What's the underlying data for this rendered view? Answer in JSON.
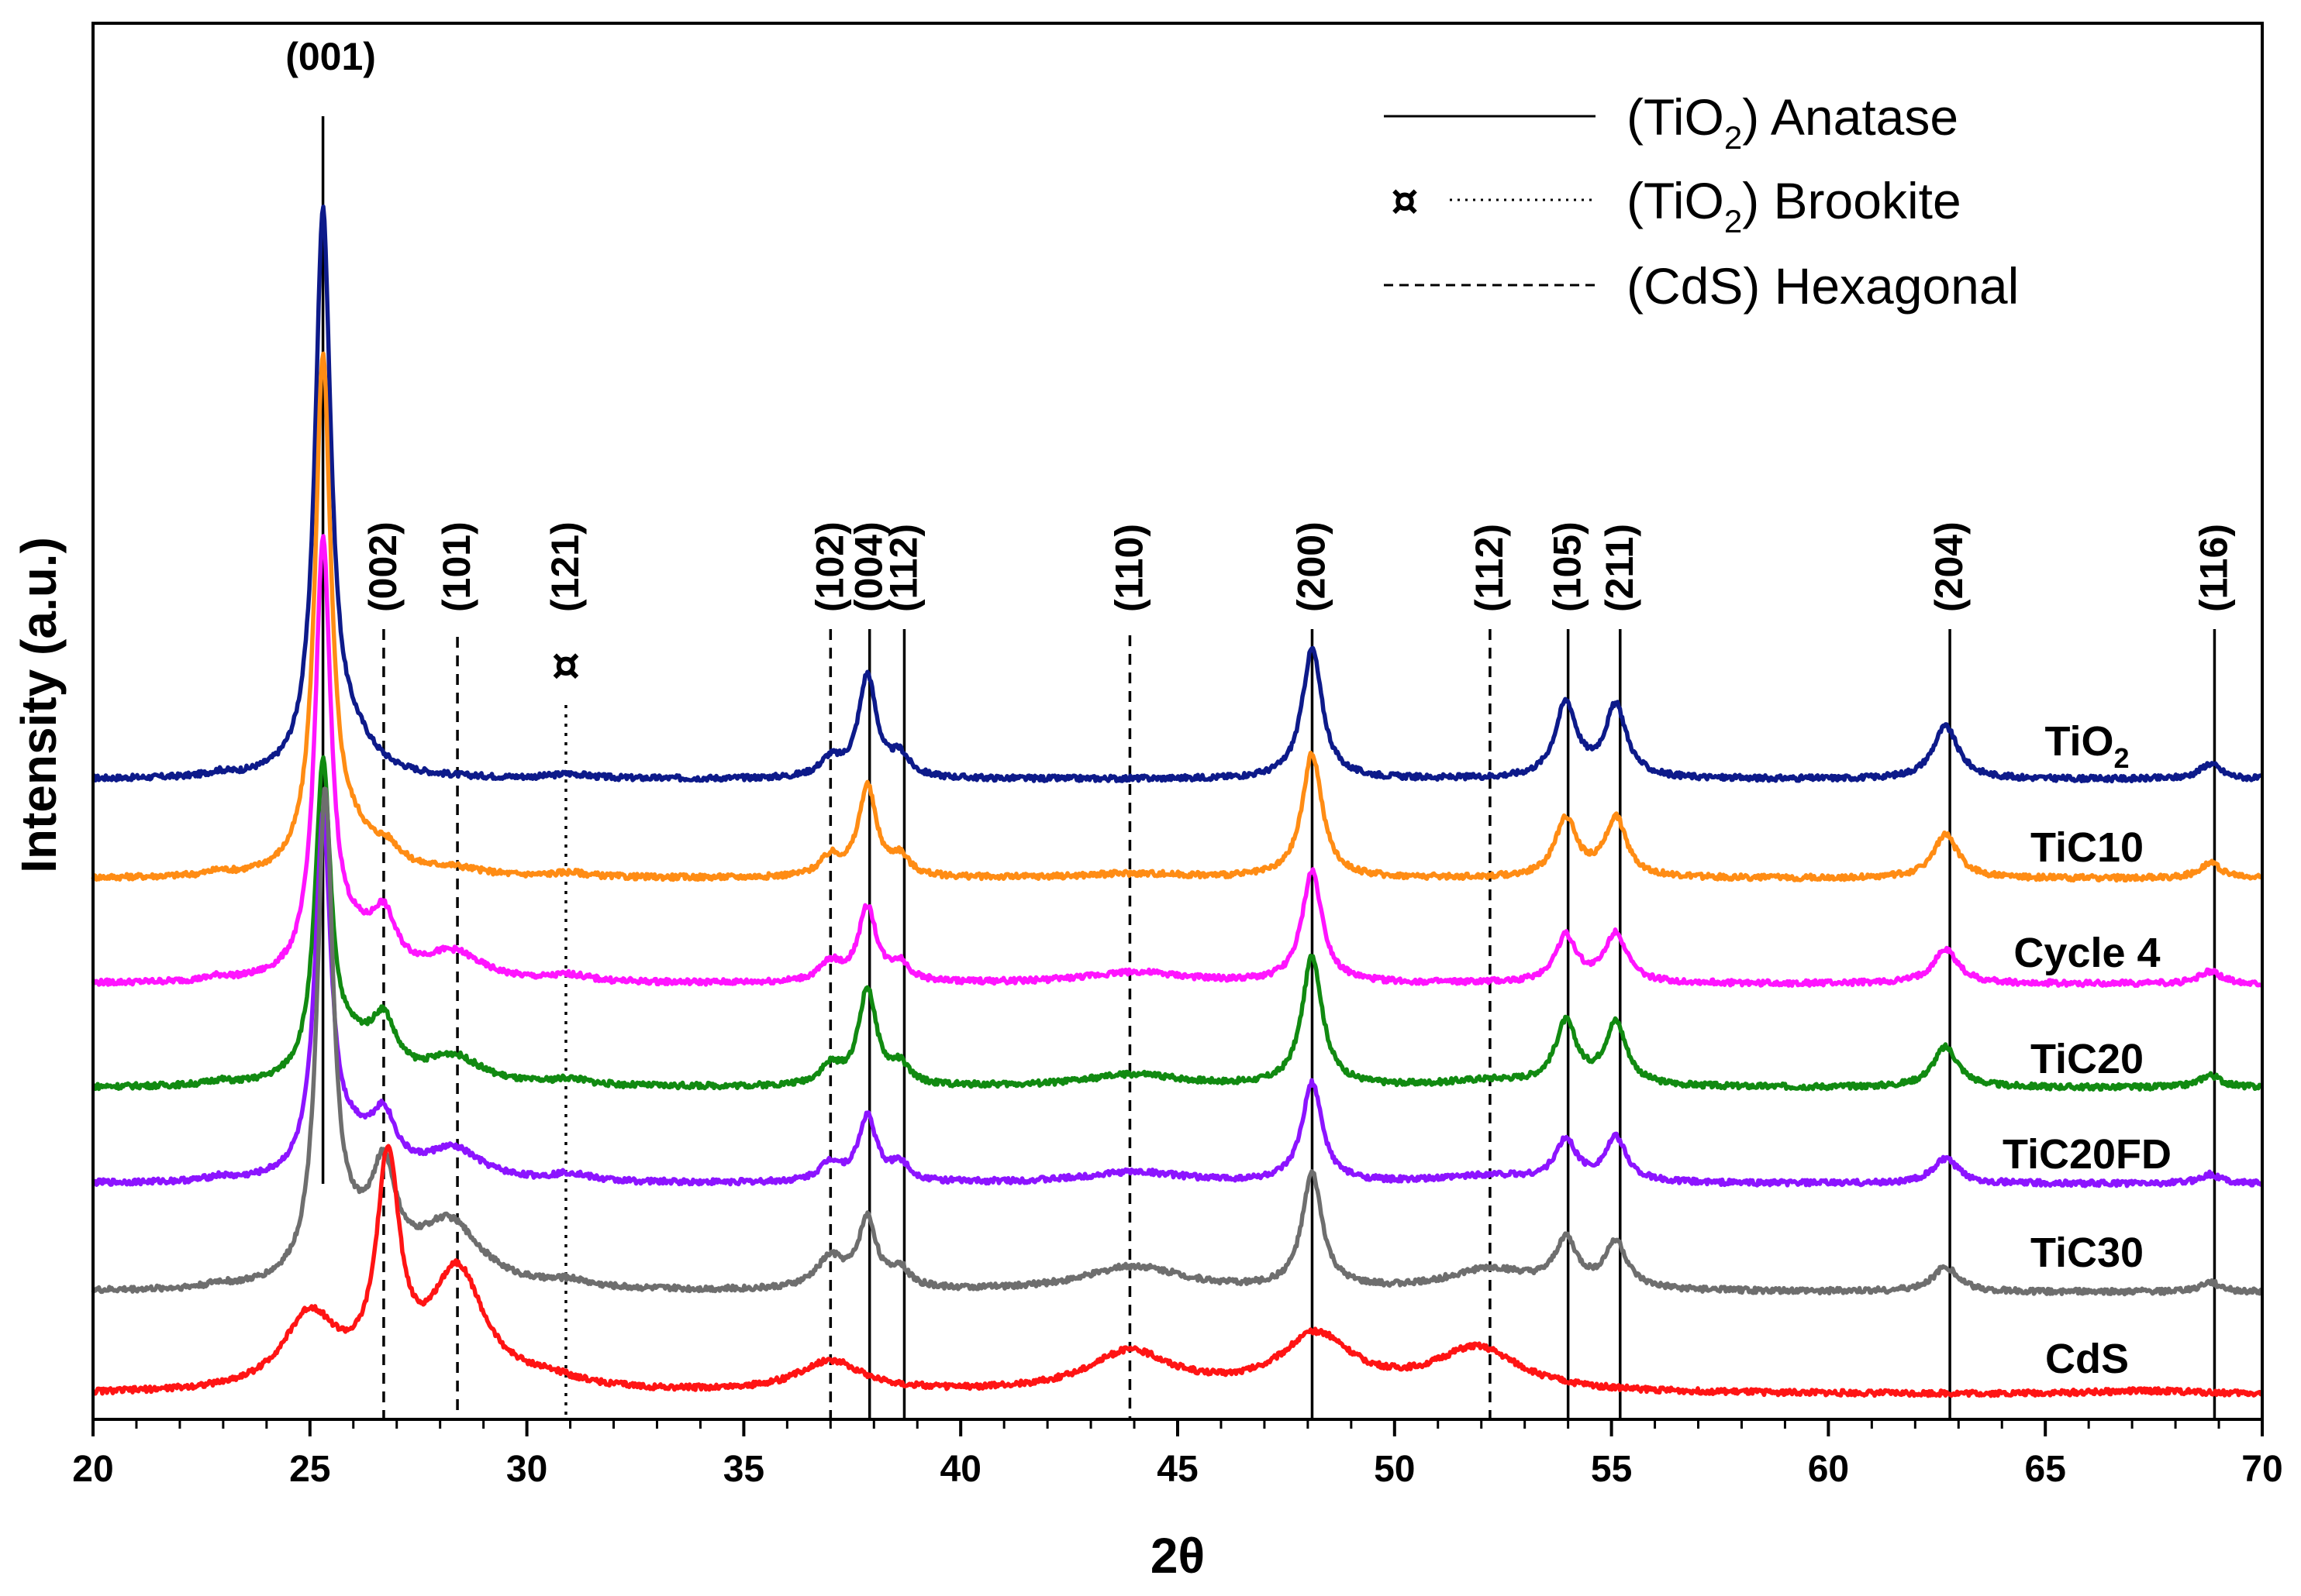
{
  "chart_data": {
    "type": "line",
    "title": "",
    "xlabel": "2θ",
    "ylabel": "Intensity (a.u.)",
    "xlim": [
      20,
      70
    ],
    "xticks": [
      "20",
      "25",
      "30",
      "35",
      "40",
      "45",
      "50",
      "55",
      "60",
      "65",
      "70"
    ],
    "yticks": [],
    "legend": {
      "position": "top-right",
      "entries": [
        {
          "prefix": "(TiO",
          "sub": "2",
          "suffix": ") Anatase",
          "style": "solid",
          "marker": ""
        },
        {
          "prefix": "(TiO",
          "sub": "2",
          "suffix": ") Brookite",
          "style": "dotted",
          "marker": "¤"
        },
        {
          "prefix": "(CdS) Hexagonal",
          "sub": "",
          "suffix": "",
          "style": "dashed",
          "marker": ""
        }
      ]
    },
    "reference_lines": [
      {
        "x": 25.3,
        "hkl": "(001)",
        "phase": "anatase"
      },
      {
        "x": 26.7,
        "hkl": "(002)",
        "phase": "cds"
      },
      {
        "x": 28.4,
        "hkl": "(101)",
        "phase": "cds"
      },
      {
        "x": 30.9,
        "hkl": "(121)",
        "phase": "brookite"
      },
      {
        "x": 37.0,
        "hkl": "(102)",
        "phase": "cds"
      },
      {
        "x": 37.9,
        "hkl": "(004)",
        "phase": "anatase"
      },
      {
        "x": 38.7,
        "hkl": "(112)",
        "phase": "anatase"
      },
      {
        "x": 43.9,
        "hkl": "(110)",
        "phase": "cds"
      },
      {
        "x": 48.1,
        "hkl": "(200)",
        "phase": "anatase"
      },
      {
        "x": 52.2,
        "hkl": "(112)",
        "phase": "cds"
      },
      {
        "x": 54.0,
        "hkl": "(105)",
        "phase": "anatase"
      },
      {
        "x": 55.2,
        "hkl": "(211)",
        "phase": "anatase"
      },
      {
        "x": 62.8,
        "hkl": "(204)",
        "phase": "anatase"
      },
      {
        "x": 68.9,
        "hkl": "(116)",
        "phase": "anatase"
      }
    ],
    "brookite_marker": {
      "x": 30.9,
      "symbol": "¤"
    },
    "series": [
      {
        "name": "TiO2",
        "label_main": "TiO",
        "label_sub": "2",
        "color": "#0d1a8a",
        "baseline": 0.0,
        "peaks": [
          [
            22.9,
            0.06,
            0.3
          ],
          [
            25.3,
            9.0,
            0.22
          ],
          [
            26.0,
            0.5,
            0.6
          ],
          [
            31.0,
            0.07,
            0.5
          ],
          [
            37.0,
            0.28,
            0.3
          ],
          [
            37.85,
            1.65,
            0.25
          ],
          [
            38.6,
            0.33,
            0.25
          ],
          [
            48.1,
            2.1,
            0.28
          ],
          [
            53.95,
            1.2,
            0.3
          ],
          [
            55.1,
            1.15,
            0.3
          ],
          [
            62.7,
            0.85,
            0.35
          ],
          [
            68.8,
            0.25,
            0.3
          ]
        ]
      },
      {
        "name": "TiC10",
        "label_main": "TiC10",
        "label_sub": "",
        "color": "#ff8c14",
        "baseline": 0.0,
        "peaks": [
          [
            22.9,
            0.06,
            0.3
          ],
          [
            25.3,
            8.2,
            0.22
          ],
          [
            26.0,
            0.5,
            0.6
          ],
          [
            26.8,
            0.3,
            0.4
          ],
          [
            28.3,
            0.12,
            0.8
          ],
          [
            31.0,
            0.07,
            0.5
          ],
          [
            37.0,
            0.3,
            0.3
          ],
          [
            37.85,
            1.45,
            0.25
          ],
          [
            38.6,
            0.3,
            0.25
          ],
          [
            44.0,
            0.07,
            1.4
          ],
          [
            48.1,
            2.0,
            0.28
          ],
          [
            53.95,
            0.95,
            0.3
          ],
          [
            55.1,
            0.95,
            0.3
          ],
          [
            62.7,
            0.7,
            0.35
          ],
          [
            68.8,
            0.25,
            0.3
          ]
        ]
      },
      {
        "name": "Cycle 4",
        "label_main": "Cycle 4",
        "label_sub": "",
        "color": "#ff14ff",
        "baseline": 0.0,
        "peaks": [
          [
            22.9,
            0.06,
            0.3
          ],
          [
            25.3,
            6.9,
            0.22
          ],
          [
            26.0,
            0.5,
            0.6
          ],
          [
            26.7,
            0.85,
            0.35
          ],
          [
            28.3,
            0.45,
            0.8
          ],
          [
            31.0,
            0.1,
            0.5
          ],
          [
            37.0,
            0.3,
            0.3
          ],
          [
            37.85,
            1.2,
            0.25
          ],
          [
            38.6,
            0.28,
            0.25
          ],
          [
            44.0,
            0.18,
            1.4
          ],
          [
            48.1,
            1.8,
            0.28
          ],
          [
            53.95,
            0.75,
            0.3
          ],
          [
            55.1,
            0.8,
            0.3
          ],
          [
            62.7,
            0.55,
            0.35
          ],
          [
            68.8,
            0.2,
            0.3
          ]
        ]
      },
      {
        "name": "TiC20",
        "label_main": "TiC20",
        "label_sub": "",
        "color": "#118a11",
        "baseline": 0.0,
        "peaks": [
          [
            22.9,
            0.06,
            0.3
          ],
          [
            25.3,
            5.0,
            0.22
          ],
          [
            26.0,
            0.5,
            0.6
          ],
          [
            26.7,
            0.85,
            0.35
          ],
          [
            28.3,
            0.45,
            0.8
          ],
          [
            31.0,
            0.1,
            0.5
          ],
          [
            37.0,
            0.3,
            0.3
          ],
          [
            37.85,
            1.55,
            0.25
          ],
          [
            38.6,
            0.3,
            0.25
          ],
          [
            44.0,
            0.2,
            1.4
          ],
          [
            48.1,
            2.1,
            0.28
          ],
          [
            52.2,
            0.1,
            1.2
          ],
          [
            53.95,
            1.0,
            0.3
          ],
          [
            55.1,
            1.0,
            0.3
          ],
          [
            62.7,
            0.65,
            0.35
          ],
          [
            68.8,
            0.2,
            0.3
          ]
        ]
      },
      {
        "name": "TiC20FD",
        "label_main": "TiC20FD",
        "label_sub": "",
        "color": "#8c14ff",
        "baseline": 0.0,
        "peaks": [
          [
            22.9,
            0.06,
            0.3
          ],
          [
            25.3,
            5.7,
            0.22
          ],
          [
            26.0,
            0.5,
            0.6
          ],
          [
            26.7,
            0.85,
            0.35
          ],
          [
            28.3,
            0.5,
            0.8
          ],
          [
            31.0,
            0.12,
            0.5
          ],
          [
            37.0,
            0.3,
            0.3
          ],
          [
            37.85,
            1.05,
            0.25
          ],
          [
            38.6,
            0.28,
            0.25
          ],
          [
            44.0,
            0.18,
            1.4
          ],
          [
            48.1,
            1.6,
            0.28
          ],
          [
            52.2,
            0.12,
            1.2
          ],
          [
            53.95,
            0.65,
            0.3
          ],
          [
            55.1,
            0.7,
            0.3
          ],
          [
            62.7,
            0.4,
            0.35
          ],
          [
            68.8,
            0.15,
            0.3
          ]
        ]
      },
      {
        "name": "TiC30",
        "label_main": "TiC30",
        "label_sub": "",
        "color": "#6e6e6e",
        "baseline": 0.0,
        "peaks": [
          [
            22.9,
            0.06,
            0.3
          ],
          [
            25.35,
            7.7,
            0.22
          ],
          [
            26.0,
            0.5,
            0.6
          ],
          [
            26.7,
            1.6,
            0.35
          ],
          [
            28.2,
            1.05,
            0.9
          ],
          [
            31.0,
            0.1,
            0.5
          ],
          [
            37.0,
            0.5,
            0.4
          ],
          [
            37.85,
            1.1,
            0.25
          ],
          [
            38.6,
            0.3,
            0.25
          ],
          [
            44.0,
            0.4,
            1.4
          ],
          [
            48.1,
            1.85,
            0.28
          ],
          [
            52.2,
            0.35,
            1.2
          ],
          [
            53.95,
            0.75,
            0.3
          ],
          [
            55.1,
            0.75,
            0.3
          ],
          [
            62.7,
            0.4,
            0.35
          ],
          [
            68.8,
            0.15,
            0.3
          ]
        ]
      },
      {
        "name": "CdS",
        "label_main": "CdS",
        "label_sub": "",
        "color": "#ff1414",
        "baseline": 0.0,
        "peaks": [
          [
            25.0,
            1.2,
            0.75
          ],
          [
            26.8,
            3.5,
            0.32
          ],
          [
            28.4,
            1.9,
            0.75
          ],
          [
            30.5,
            0.15,
            1.0
          ],
          [
            37.0,
            0.5,
            0.9
          ],
          [
            43.9,
            0.65,
            1.2
          ],
          [
            48.2,
            0.9,
            1.0
          ],
          [
            51.9,
            0.7,
            1.2
          ],
          [
            67.4,
            0.05,
            1.5
          ]
        ]
      }
    ]
  }
}
